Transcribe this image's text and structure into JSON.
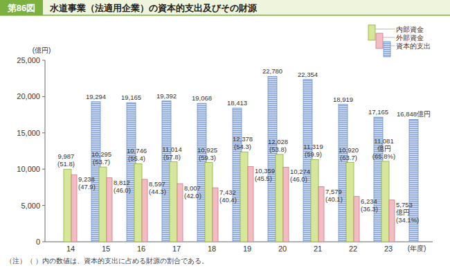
{
  "chart_data": {
    "type": "bar",
    "figure_label": "第86図",
    "title": "水道事業（法適用企業）の資本的支出及びその財源",
    "y_label": "(億円)",
    "x_label": "(年度)",
    "note": "（注）（ ）内の数値は、資本的支出に占める財源の割合である。",
    "categories": [
      "14",
      "15",
      "16",
      "17",
      "18",
      "19",
      "20",
      "21",
      "22",
      "23"
    ],
    "series": [
      {
        "name": "内部資金",
        "color": "#d6e79a",
        "values": [
          9987,
          10295,
          10746,
          11014,
          10925,
          12378,
          12028,
          11319,
          10920,
          11081
        ],
        "value_labels": [
          "9,987",
          "10,295",
          "10,746",
          "11,014",
          "10,925",
          "12,378",
          "12,028",
          "11,319",
          "10,920",
          "11,081\n億円"
        ],
        "ratios": [
          51.8,
          53.7,
          55.4,
          57.8,
          59.3,
          54.3,
          53.8,
          59.9,
          63.7,
          65.8
        ],
        "ratio_labels": [
          "(51.8)",
          "(53.7)",
          "(55.4)",
          "(57.8)",
          "(59.3)",
          "(54.3)",
          "(53.8)",
          "(59.9)",
          "(63.7)",
          "(65.8%)"
        ]
      },
      {
        "name": "外部資金",
        "color": "#f3bcc2",
        "values": [
          9238,
          8812,
          8597,
          8007,
          7432,
          10359,
          10274,
          7579,
          6234,
          5753
        ],
        "value_labels": [
          "9,238",
          "8,812",
          "8,597",
          "8,007",
          "7,432",
          "10,359",
          "10,274",
          "7,579",
          "6,234",
          "5,753\n億円"
        ],
        "ratios": [
          47.9,
          46.0,
          44.3,
          42.0,
          40.4,
          45.5,
          46.0,
          40.1,
          36.3,
          34.1
        ],
        "ratio_labels": [
          "(47.9)",
          "(46.0)",
          "(44.3)",
          "(42.0)",
          "(40.4)",
          "(45.5)",
          "(46.0)",
          "(40.1)",
          "(36.3)",
          "(34.1%)"
        ]
      },
      {
        "name": "資本的支出",
        "color": "#c4d4ee",
        "line_style": "striped",
        "values": [
          19294,
          19165,
          19392,
          19068,
          18413,
          22780,
          22354,
          18919,
          17165,
          16848
        ],
        "value_labels": [
          "19,294",
          "19,165",
          "19,392",
          "19,068",
          "18,413",
          "22,780",
          "22,354",
          "18,919",
          "17,165",
          "16,848億円"
        ]
      }
    ],
    "ylim": [
      0,
      25000
    ],
    "yticks": [
      0,
      {
        "value": 5000,
        "label": "5,000"
      },
      {
        "value": 10000,
        "label": "10,000"
      },
      {
        "value": 15000,
        "label": "15,000"
      },
      {
        "value": 20000,
        "label": "20,000"
      },
      {
        "value": 25000,
        "label": "25,000"
      }
    ],
    "grid": false,
    "legend": "top-right",
    "data_labels": true
  }
}
